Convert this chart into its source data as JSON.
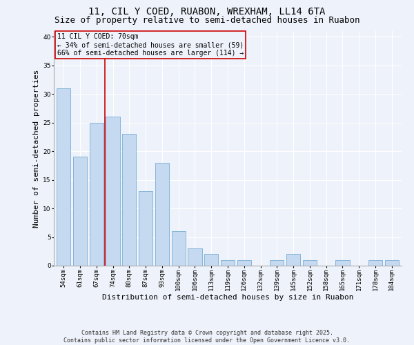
{
  "title": "11, CIL Y COED, RUABON, WREXHAM, LL14 6TA",
  "subtitle": "Size of property relative to semi-detached houses in Ruabon",
  "xlabel": "Distribution of semi-detached houses by size in Ruabon",
  "ylabel": "Number of semi-detached properties",
  "categories": [
    "54sqm",
    "61sqm",
    "67sqm",
    "74sqm",
    "80sqm",
    "87sqm",
    "93sqm",
    "100sqm",
    "106sqm",
    "113sqm",
    "119sqm",
    "126sqm",
    "132sqm",
    "139sqm",
    "145sqm",
    "152sqm",
    "158sqm",
    "165sqm",
    "171sqm",
    "178sqm",
    "184sqm"
  ],
  "values": [
    31,
    19,
    25,
    26,
    23,
    13,
    18,
    6,
    3,
    2,
    1,
    1,
    0,
    1,
    2,
    1,
    0,
    1,
    0,
    1,
    1
  ],
  "bar_color": "#c5d9f0",
  "bar_edge_color": "#7aadd4",
  "vline_color": "#cc0000",
  "annotation_title": "11 CIL Y COED: 70sqm",
  "annotation_line1": "← 34% of semi-detached houses are smaller (59)",
  "annotation_line2": "66% of semi-detached houses are larger (114) →",
  "annotation_box_color": "#cc0000",
  "ylim": [
    0,
    41
  ],
  "yticks": [
    0,
    5,
    10,
    15,
    20,
    25,
    30,
    35,
    40
  ],
  "footer_line1": "Contains HM Land Registry data © Crown copyright and database right 2025.",
  "footer_line2": "Contains public sector information licensed under the Open Government Licence v3.0.",
  "bg_color": "#eef2fa",
  "title_fontsize": 10,
  "subtitle_fontsize": 9,
  "tick_fontsize": 6.5,
  "label_fontsize": 8,
  "footer_fontsize": 6,
  "annot_fontsize": 7
}
